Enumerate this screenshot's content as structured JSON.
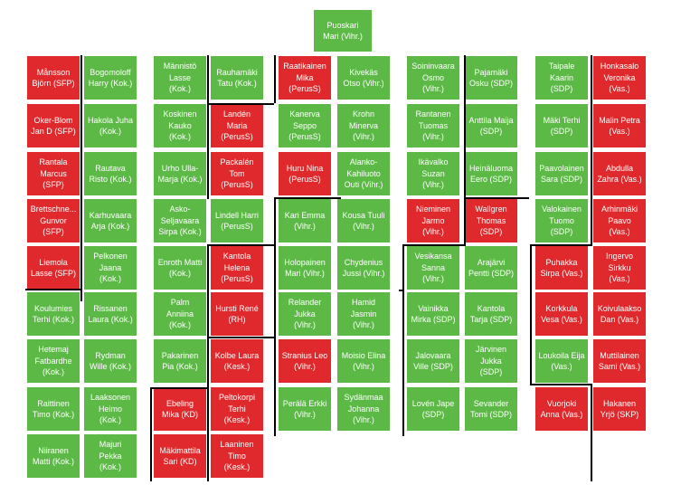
{
  "colors": {
    "green": "#5cb946",
    "red": "#e0292c",
    "divider": "#000000"
  },
  "speaker": {
    "name": "Puoskari\nMari (Vihr.)",
    "color": "green"
  },
  "seats": [
    {
      "name": "Månsson\nBjörn (SFP)",
      "color": "red"
    },
    {
      "name": "Bogomoloff\nHarry (Kok.)",
      "color": "green"
    },
    {
      "name": "Männistö\nLasse\n(Kok.)",
      "color": "green"
    },
    {
      "name": "Rauhamäki\nTatu (Kok.)",
      "color": "green"
    },
    {
      "name": "Raatikainen\nMika\n(PerusS)",
      "color": "red"
    },
    {
      "name": "Kivekäs\nOtso (Vihr.)",
      "color": "green"
    },
    {
      "name": "Soininvaara\nOsmo\n(Vihr.)",
      "color": "green"
    },
    {
      "name": "Pajamäki\nOsku (SDP)",
      "color": "green"
    },
    {
      "name": "Taipale\nKaarin\n(SDP)",
      "color": "green"
    },
    {
      "name": "Honkasalo\nVeronika\n(Vas.)",
      "color": "red"
    },
    {
      "name": "Oker-Blom\nJan D (SFP)",
      "color": "red"
    },
    {
      "name": "Hakola Juha\n(Kok.)",
      "color": "green"
    },
    {
      "name": "Koskinen\nKauko\n(Kok.)",
      "color": "green"
    },
    {
      "name": "Landén\nMaria\n(PerusS)",
      "color": "red"
    },
    {
      "name": "Kanerva\nSeppo\n(PerusS)",
      "color": "green"
    },
    {
      "name": "Krohn\nMinerva\n(Vihr.)",
      "color": "green"
    },
    {
      "name": "Rantanen\nTuomas\n(Vihr.)",
      "color": "green"
    },
    {
      "name": "Anttila Maija\n(SDP)",
      "color": "green"
    },
    {
      "name": "Mäki Terhi\n(SDP)",
      "color": "green"
    },
    {
      "name": "Malin Petra\n(Vas.)",
      "color": "red"
    },
    {
      "name": "Rantala\nMarcus\n(SFP)",
      "color": "red"
    },
    {
      "name": "Rautava\nRisto (Kok.)",
      "color": "green"
    },
    {
      "name": "Urho Ulla-\nMarja (Kok.)",
      "color": "green"
    },
    {
      "name": "Packalén\nTom\n(PerusS)",
      "color": "red"
    },
    {
      "name": "Huru Nina\n(PerusS)",
      "color": "red"
    },
    {
      "name": "Alanko-\nKahiluoto\nOuti (Vihr.)",
      "color": "green"
    },
    {
      "name": "Ikävalko\nSuzan\n(Vihr.)",
      "color": "green"
    },
    {
      "name": "Heinäluoma\nEero (SDP)",
      "color": "green"
    },
    {
      "name": "Paavolainen\nSara (SDP)",
      "color": "green"
    },
    {
      "name": "Abdulla\nZahra (Vas.)",
      "color": "red"
    },
    {
      "name": "Brettschne...\nGunvor\n(SFP)",
      "color": "red"
    },
    {
      "name": "Karhuvaara\nArja (Kok.)",
      "color": "green"
    },
    {
      "name": "Asko-\nSeljavaara\nSirpa (Kok.)",
      "color": "green"
    },
    {
      "name": "Lindell Harri\n(PerusS)",
      "color": "green"
    },
    {
      "name": "Kari Emma\n(Vihr.)",
      "color": "green"
    },
    {
      "name": "Kousa Tuuli\n(Vihr.)",
      "color": "green"
    },
    {
      "name": "Nieminen\nJarmo\n(Vihr.)",
      "color": "red"
    },
    {
      "name": "Wallgren\nThomas\n(SDP)",
      "color": "red"
    },
    {
      "name": "Valokainen\nTuomo\n(SDP)",
      "color": "green"
    },
    {
      "name": "Arhinmäki\nPaavo\n(Vas.)",
      "color": "red"
    },
    {
      "name": "Liemola\nLasse (SFP)",
      "color": "red"
    },
    {
      "name": "Pelkonen\nJaana\n(Kok.)",
      "color": "green"
    },
    {
      "name": "Enroth Matti\n(Kok.)",
      "color": "green"
    },
    {
      "name": "Kantola\nHelena\n(PerusS)",
      "color": "red"
    },
    {
      "name": "Holopainen\nMari (Vihr.)",
      "color": "green"
    },
    {
      "name": "Chydenius\nJussi (Vihr.)",
      "color": "green"
    },
    {
      "name": "Vesikansa\nSanna\n(Vihr.)",
      "color": "green"
    },
    {
      "name": "Arajärvi\nPentti (SDP)",
      "color": "green"
    },
    {
      "name": "Puhakka\nSirpa (Vas.)",
      "color": "red"
    },
    {
      "name": "Ingervo\nSirkku\n(Vas.)",
      "color": "red"
    },
    {
      "name": "Koulumies\nTerhi (Kok.)",
      "color": "green"
    },
    {
      "name": "Rissanen\nLaura (Kok.)",
      "color": "green"
    },
    {
      "name": "Palm\nAnniina\n(Kok.)",
      "color": "green"
    },
    {
      "name": "Hursti René\n(RH)",
      "color": "red"
    },
    {
      "name": "Relander\nJukka\n(Vihr.)",
      "color": "green"
    },
    {
      "name": "Hamid\nJasmin\n(Vihr.)",
      "color": "green"
    },
    {
      "name": "Vainikka\nMirka (SDP)",
      "color": "green"
    },
    {
      "name": "Kantola\nTarja (SDP)",
      "color": "green"
    },
    {
      "name": "Korkkula\nVesa (Vas.)",
      "color": "red"
    },
    {
      "name": "Koivulaakso\nDan (Vas.)",
      "color": "red"
    },
    {
      "name": "Hetemaj\nFatbardhe\n(Kok.)",
      "color": "green"
    },
    {
      "name": "Rydman\nWille (Kok.)",
      "color": "green"
    },
    {
      "name": "Pakarinen\nPia (Kok.)",
      "color": "green"
    },
    {
      "name": "Kolbe Laura\n(Kesk.)",
      "color": "red"
    },
    {
      "name": "Stranius Leo\n(Vihr.)",
      "color": "red"
    },
    {
      "name": "Moisio Elina\n(Vihr.)",
      "color": "green"
    },
    {
      "name": "Jalovaara\nVille (SDP)",
      "color": "green"
    },
    {
      "name": "Järvinen\nJukka\n(SDP)",
      "color": "green"
    },
    {
      "name": "Loukoila Eija\n(Vas.)",
      "color": "green"
    },
    {
      "name": "Muttilainen\nSami (Vas.)",
      "color": "red"
    },
    {
      "name": "Raittinen\nTimo (Kok.)",
      "color": "green"
    },
    {
      "name": "Laaksonen\nHeimo\n(Kok.)",
      "color": "green"
    },
    {
      "name": "Ebeling\nMika (KD)",
      "color": "red"
    },
    {
      "name": "Peltokorpi\nTerhi\n(Kesk.)",
      "color": "red"
    },
    {
      "name": "Perälä Erkki\n(Vihr.)",
      "color": "green"
    },
    {
      "name": "Sydänmaa\nJohanna\n(Vihr.)",
      "color": "green"
    },
    {
      "name": "Lovén Jape\n(SDP)",
      "color": "green"
    },
    {
      "name": "Sevander\nTomi (SDP)",
      "color": "green"
    },
    {
      "name": "Vuorjoki\nAnna (Vas.)",
      "color": "red"
    },
    {
      "name": "Hakanen\nYrjö (SKP)",
      "color": "red"
    },
    {
      "name": "Niiranen\nMatti (Kok.)",
      "color": "green"
    },
    {
      "name": "Majuri\nPekka\n(Kok.)",
      "color": "green"
    },
    {
      "name": "Mäkimattila\nSari (KD)",
      "color": "red"
    },
    {
      "name": "Laaninen\nTimo\n(Kesk.)",
      "color": "red"
    }
  ]
}
